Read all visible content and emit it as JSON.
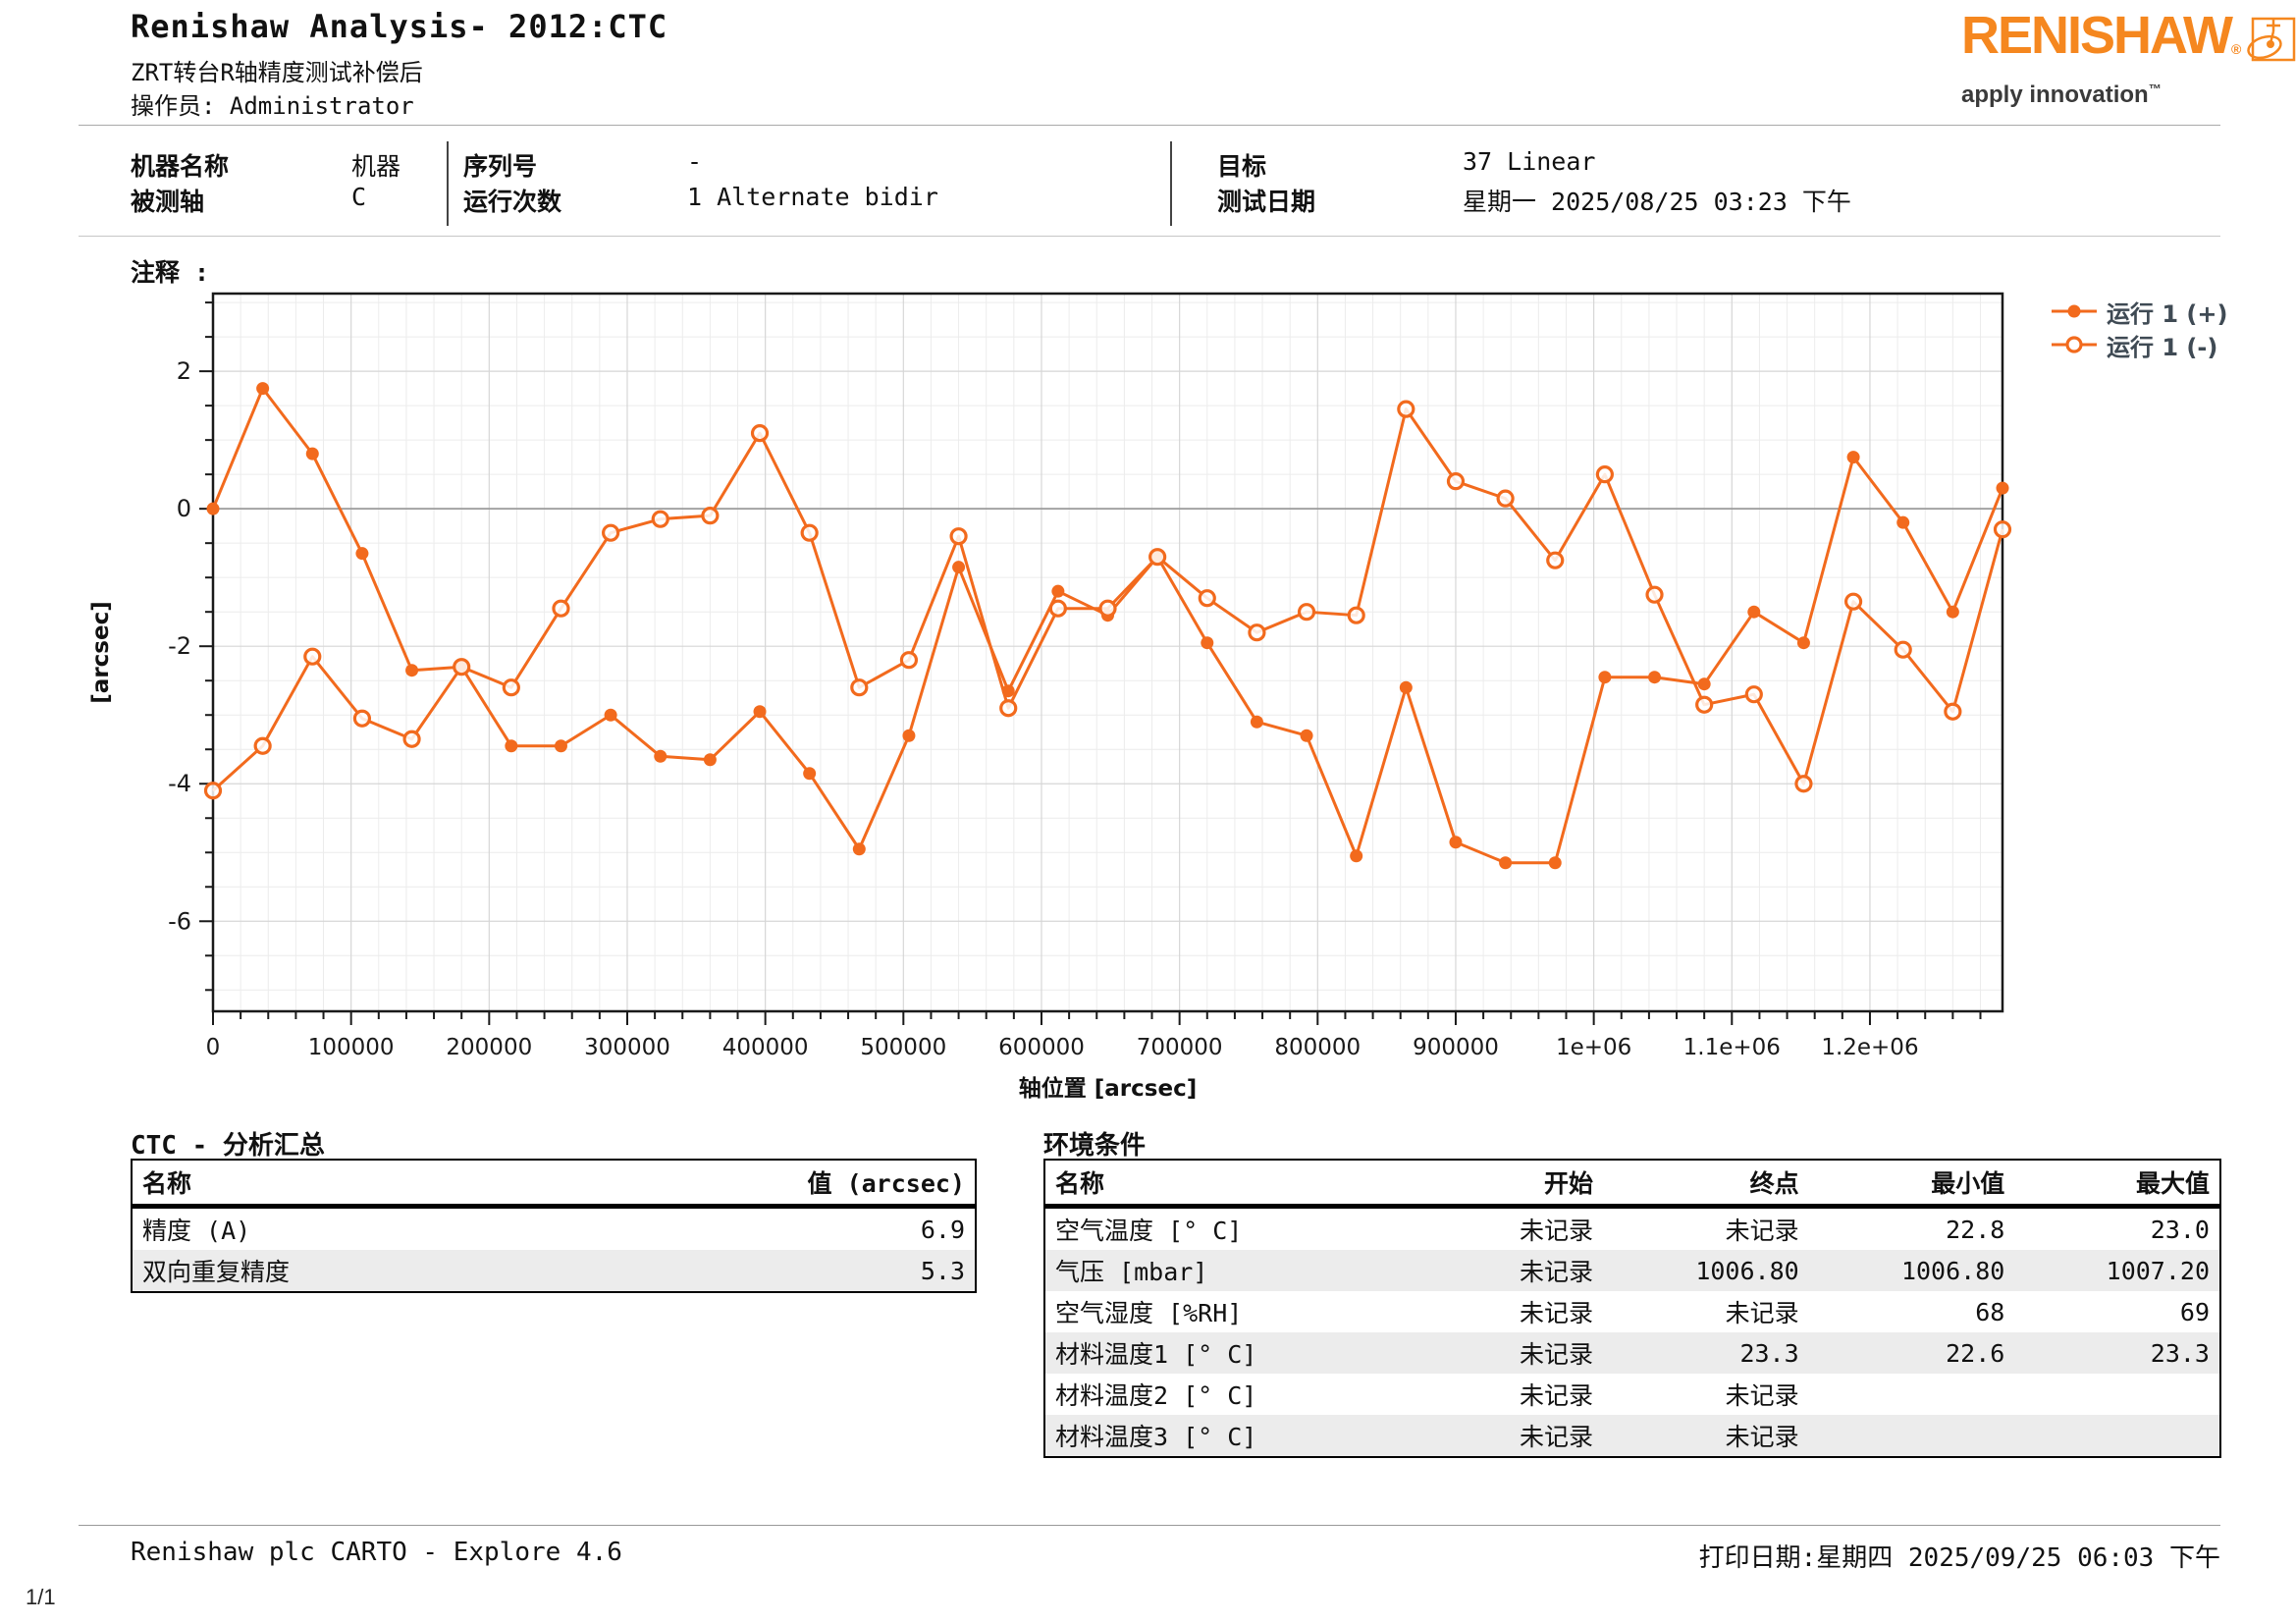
{
  "header": {
    "title": "Renishaw Analysis- 2012:CTC",
    "subtitle": "ZRT转台R轴精度测试补偿后",
    "operator": "操作员: Administrator"
  },
  "logo": {
    "brand": "RENISHAW",
    "registered": "®",
    "tagline": "apply innovation",
    "trademark": "™",
    "orange": "#F5871F"
  },
  "machine_info": {
    "col1": [
      {
        "label": "机器名称",
        "value": "机器"
      },
      {
        "label": "被测轴",
        "value": "C"
      }
    ],
    "col2": [
      {
        "label": "序列号",
        "value": "-"
      },
      {
        "label": "运行次数",
        "value": "1 Alternate bidir"
      }
    ],
    "col3": [
      {
        "label": "目标",
        "value": "37 Linear"
      },
      {
        "label": "测试日期",
        "value": "星期一 2025/08/25 03:23 下午"
      }
    ]
  },
  "notes_label": "注释 :",
  "chart_data": {
    "type": "line",
    "xlabel": "轴位置 [arcsec]",
    "ylabel": "[arcsec]",
    "x_max": 1296000,
    "x_minor_step": 20000,
    "x_ticks": [
      0,
      100000,
      200000,
      300000,
      400000,
      500000,
      600000,
      700000,
      800000,
      900000,
      1000000,
      1100000,
      1200000
    ],
    "x_tick_labels": [
      "0",
      "100000",
      "200000",
      "300000",
      "400000",
      "500000",
      "600000",
      "700000",
      "800000",
      "900000",
      "1e+06",
      "1.1e+06",
      "1.2e+06"
    ],
    "y_ticks": [
      2,
      0,
      -2,
      -4,
      -6
    ],
    "y_minor_step": 0.5,
    "ylim": [
      -7.31,
      3.13
    ],
    "grid": true,
    "legend_position": "outside-top-right",
    "series_color": "#F26A1D",
    "x": [
      0,
      36000,
      72000,
      108000,
      144000,
      180000,
      216000,
      252000,
      288000,
      324000,
      360000,
      396000,
      432000,
      468000,
      504000,
      540000,
      576000,
      612000,
      648000,
      684000,
      720000,
      756000,
      792000,
      828000,
      864000,
      900000,
      936000,
      972000,
      1008000,
      1044000,
      1080000,
      1116000,
      1152000,
      1188000,
      1224000,
      1260000,
      1296000
    ],
    "series": [
      {
        "name": "运行 1 (+)",
        "marker": "filled-circle",
        "values": [
          0,
          1.75,
          0.8,
          -0.65,
          -2.35,
          -2.3,
          -3.45,
          -3.45,
          -3.0,
          -3.6,
          -3.65,
          -2.95,
          -3.85,
          -4.95,
          -3.3,
          -0.85,
          -2.65,
          -1.2,
          -1.55,
          -0.7,
          -1.95,
          -3.1,
          -3.3,
          -5.05,
          -2.6,
          -4.85,
          -5.15,
          -5.15,
          -2.45,
          -2.45,
          -2.55,
          -1.5,
          -1.95,
          0.75,
          -0.2,
          -1.5,
          0.3
        ]
      },
      {
        "name": "运行 1 (-)",
        "marker": "open-circle",
        "values": [
          -4.1,
          -3.45,
          -2.15,
          -3.05,
          -3.35,
          -2.3,
          -2.6,
          -1.45,
          -0.35,
          -0.15,
          -0.1,
          1.1,
          -0.35,
          -2.6,
          -2.2,
          -0.4,
          -2.9,
          -1.45,
          -1.45,
          -0.7,
          -1.3,
          -1.8,
          -1.5,
          -1.55,
          1.45,
          0.4,
          0.15,
          -0.75,
          0.5,
          -1.25,
          -2.85,
          -2.7,
          -4.0,
          -1.35,
          -2.05,
          -2.95,
          -0.3
        ]
      }
    ]
  },
  "summary_table": {
    "title": "CTC - 分析汇总",
    "headers": [
      "名称",
      "值 (arcsec)"
    ],
    "rows": [
      [
        "精度 (A)",
        "6.9"
      ],
      [
        "双向重复精度",
        "5.3"
      ]
    ]
  },
  "environment_table": {
    "title": "环境条件",
    "headers": [
      "名称",
      "开始",
      "终点",
      "最小值",
      "最大值"
    ],
    "rows": [
      [
        "空气温度 [° C]",
        "未记录",
        "未记录",
        "22.8",
        "23.0"
      ],
      [
        "气压 [mbar]",
        "未记录",
        "1006.80",
        "1006.80",
        "1007.20"
      ],
      [
        "空气湿度 [%RH]",
        "未记录",
        "未记录",
        "68",
        "69"
      ],
      [
        "材料温度1 [° C]",
        "未记录",
        "23.3",
        "22.6",
        "23.3"
      ],
      [
        "材料温度2 [° C]",
        "未记录",
        "未记录",
        "",
        ""
      ],
      [
        "材料温度3 [° C]",
        "未记录",
        "未记录",
        "",
        ""
      ]
    ]
  },
  "footer": {
    "left": "Renishaw plc CARTO - Explore 4.6",
    "right": "打印日期:星期四 2025/09/25 06:03 下午",
    "page_number": "1/1"
  }
}
